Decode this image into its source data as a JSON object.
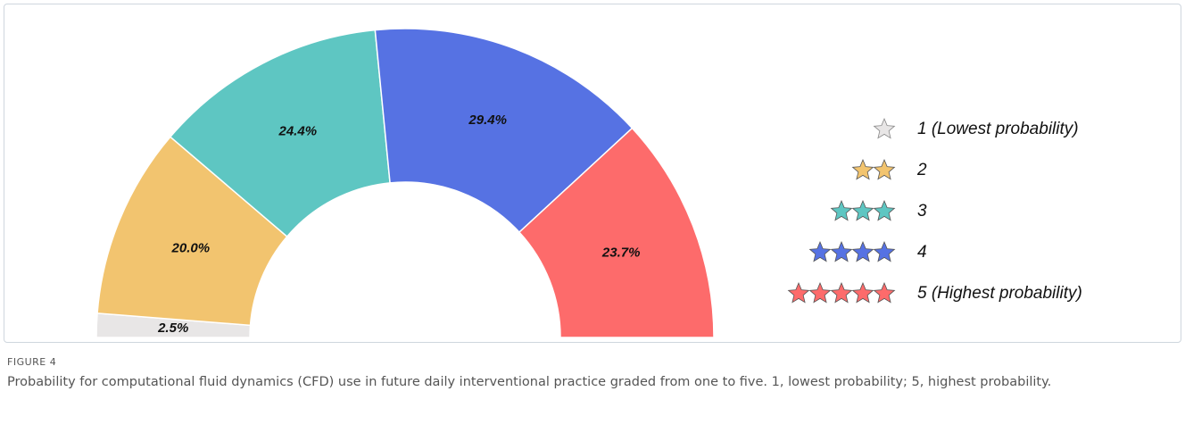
{
  "chart_data": {
    "type": "donut",
    "categories": [
      "1 (Lowest probability)",
      "2",
      "3",
      "4",
      "5 (Highest probability)"
    ],
    "series": [
      {
        "values": [
          2.5,
          20.0,
          24.4,
          29.4,
          23.7
        ],
        "value_labels": [
          "2.5%",
          "20.0%",
          "24.4%",
          "29.4%",
          "23.7%"
        ],
        "colors": [
          "#e8e6e6",
          "#f2c46f",
          "#5ec6c2",
          "#5672e3",
          "#fd6b6b"
        ]
      }
    ],
    "legend": "right"
  },
  "figure_label": "FIGURE 4",
  "caption": "Probability for computational fluid dynamics (CFD) use in future daily interventional practice graded from one to five. 1, lowest probability; 5, highest probability."
}
